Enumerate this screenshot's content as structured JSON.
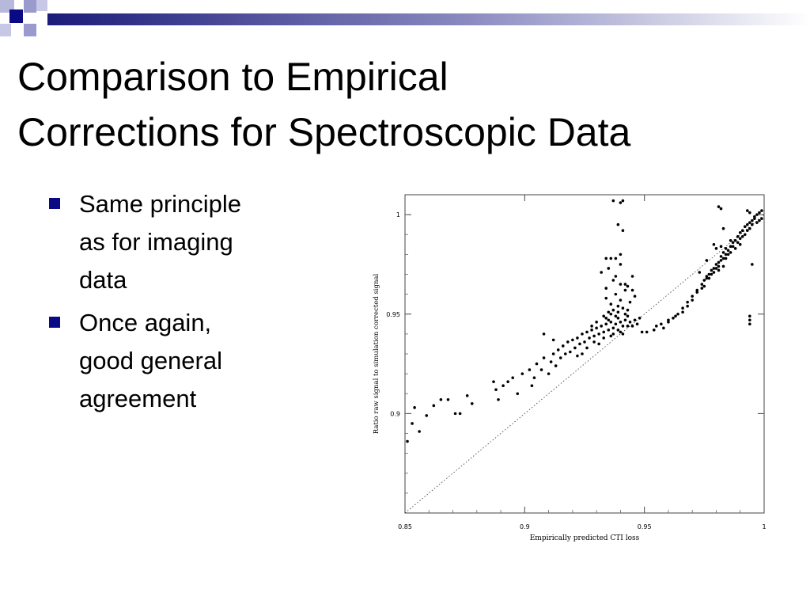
{
  "slide": {
    "title_lines": [
      "Comparison to Empirical",
      "Corrections for Spectroscopic Data"
    ],
    "bullets": [
      [
        "Same principle",
        "as for imaging",
        "data"
      ],
      [
        "Once again,",
        "good general",
        "agreement"
      ]
    ],
    "colors": {
      "bullet": "#0a0a84",
      "header_band": "#1b1b7a",
      "deco_square": "#0a0a84"
    }
  },
  "chart_data": {
    "type": "scatter",
    "xlabel": "Empirically predicted CTI loss",
    "ylabel": "Ratio raw signal to simulation corrected signal",
    "xlim": [
      0.85,
      1.0
    ],
    "ylim": [
      0.85,
      1.01
    ],
    "xticks": [
      "0.85",
      "0.9",
      "0.95",
      "1"
    ],
    "yticks": [
      "0.9",
      "0.95",
      "1"
    ],
    "reference_line": "y = x (dotted)",
    "series": [
      {
        "points": [
          [
            0.851,
            0.886
          ],
          [
            0.853,
            0.895
          ],
          [
            0.854,
            0.903
          ],
          [
            0.856,
            0.891
          ],
          [
            0.859,
            0.899
          ],
          [
            0.862,
            0.904
          ],
          [
            0.865,
            0.907
          ],
          [
            0.868,
            0.907
          ],
          [
            0.871,
            0.9
          ],
          [
            0.873,
            0.9
          ],
          [
            0.876,
            0.909
          ],
          [
            0.878,
            0.905
          ],
          [
            0.887,
            0.916
          ],
          [
            0.888,
            0.912
          ],
          [
            0.889,
            0.907
          ],
          [
            0.891,
            0.914
          ],
          [
            0.893,
            0.916
          ],
          [
            0.895,
            0.918
          ],
          [
            0.897,
            0.91
          ],
          [
            0.899,
            0.92
          ],
          [
            0.902,
            0.922
          ],
          [
            0.903,
            0.914
          ],
          [
            0.904,
            0.918
          ],
          [
            0.905,
            0.925
          ],
          [
            0.907,
            0.922
          ],
          [
            0.908,
            0.928
          ],
          [
            0.91,
            0.92
          ],
          [
            0.911,
            0.926
          ],
          [
            0.912,
            0.93
          ],
          [
            0.913,
            0.924
          ],
          [
            0.914,
            0.932
          ],
          [
            0.915,
            0.928
          ],
          [
            0.916,
            0.934
          ],
          [
            0.917,
            0.93
          ],
          [
            0.918,
            0.936
          ],
          [
            0.919,
            0.931
          ],
          [
            0.92,
            0.937
          ],
          [
            0.921,
            0.933
          ],
          [
            0.922,
            0.938
          ],
          [
            0.923,
            0.935
          ],
          [
            0.924,
            0.94
          ],
          [
            0.925,
            0.936
          ],
          [
            0.926,
            0.941
          ],
          [
            0.927,
            0.938
          ],
          [
            0.928,
            0.942
          ],
          [
            0.929,
            0.939
          ],
          [
            0.93,
            0.943
          ],
          [
            0.931,
            0.94
          ],
          [
            0.932,
            0.944
          ],
          [
            0.933,
            0.941
          ],
          [
            0.934,
            0.945
          ],
          [
            0.935,
            0.942
          ],
          [
            0.936,
            0.946
          ],
          [
            0.937,
            0.943
          ],
          [
            0.938,
            0.945
          ],
          [
            0.939,
            0.942
          ],
          [
            0.94,
            0.946
          ],
          [
            0.941,
            0.944
          ],
          [
            0.942,
            0.947
          ],
          [
            0.943,
            0.944
          ],
          [
            0.944,
            0.946
          ],
          [
            0.945,
            0.944
          ],
          [
            0.946,
            0.947
          ],
          [
            0.947,
            0.945
          ],
          [
            0.948,
            0.948
          ],
          [
            0.933,
            0.938
          ],
          [
            0.935,
            0.947
          ],
          [
            0.937,
            0.94
          ],
          [
            0.939,
            0.948
          ],
          [
            0.941,
            0.94
          ],
          [
            0.943,
            0.949
          ],
          [
            0.936,
            0.939
          ],
          [
            0.938,
            0.949
          ],
          [
            0.94,
            0.941
          ],
          [
            0.942,
            0.95
          ],
          [
            0.934,
            0.948
          ],
          [
            0.93,
            0.946
          ],
          [
            0.928,
            0.944
          ],
          [
            0.926,
            0.933
          ],
          [
            0.924,
            0.93
          ],
          [
            0.922,
            0.929
          ],
          [
            0.929,
            0.936
          ],
          [
            0.931,
            0.935
          ],
          [
            0.933,
            0.949
          ],
          [
            0.935,
            0.951
          ],
          [
            0.937,
            0.952
          ],
          [
            0.939,
            0.951
          ],
          [
            0.941,
            0.953
          ],
          [
            0.943,
            0.952
          ],
          [
            0.934,
            0.958
          ],
          [
            0.936,
            0.955
          ],
          [
            0.938,
            0.96
          ],
          [
            0.94,
            0.957
          ],
          [
            0.942,
            0.962
          ],
          [
            0.944,
            0.956
          ],
          [
            0.946,
            0.959
          ],
          [
            0.934,
            0.963
          ],
          [
            0.937,
            0.967
          ],
          [
            0.94,
            0.965
          ],
          [
            0.943,
            0.964
          ],
          [
            0.945,
            0.969
          ],
          [
            0.932,
            0.971
          ],
          [
            0.935,
            0.973
          ],
          [
            0.938,
            0.969
          ],
          [
            0.94,
            0.975
          ],
          [
            0.942,
            0.965
          ],
          [
            0.936,
            0.95
          ],
          [
            0.939,
            0.954
          ],
          [
            0.94,
            0.98
          ],
          [
            0.938,
            0.978
          ],
          [
            0.936,
            0.978
          ],
          [
            0.934,
            0.978
          ],
          [
            0.939,
            0.995
          ],
          [
            0.941,
            0.992
          ],
          [
            0.937,
            1.007
          ],
          [
            0.94,
            1.006
          ],
          [
            0.941,
            1.007
          ],
          [
            0.945,
            0.962
          ],
          [
            0.908,
            0.94
          ],
          [
            0.912,
            0.937
          ],
          [
            0.955,
            0.944
          ],
          [
            0.958,
            0.943
          ],
          [
            0.96,
            0.946
          ],
          [
            0.962,
            0.948
          ],
          [
            0.964,
            0.95
          ],
          [
            0.966,
            0.953
          ],
          [
            0.968,
            0.956
          ],
          [
            0.97,
            0.959
          ],
          [
            0.972,
            0.962
          ],
          [
            0.974,
            0.965
          ],
          [
            0.975,
            0.967
          ],
          [
            0.976,
            0.969
          ],
          [
            0.977,
            0.97
          ],
          [
            0.978,
            0.972
          ],
          [
            0.979,
            0.973
          ],
          [
            0.98,
            0.975
          ],
          [
            0.981,
            0.976
          ],
          [
            0.982,
            0.977
          ],
          [
            0.983,
            0.978
          ],
          [
            0.984,
            0.98
          ],
          [
            0.985,
            0.982
          ],
          [
            0.986,
            0.984
          ],
          [
            0.987,
            0.986
          ],
          [
            0.988,
            0.987
          ],
          [
            0.989,
            0.989
          ],
          [
            0.99,
            0.991
          ],
          [
            0.991,
            0.992
          ],
          [
            0.992,
            0.994
          ],
          [
            0.993,
            0.995
          ],
          [
            0.994,
            0.996
          ],
          [
            0.995,
            0.997
          ],
          [
            0.996,
            0.998
          ],
          [
            0.997,
            0.996
          ],
          [
            0.998,
            0.997
          ],
          [
            0.999,
            0.998
          ],
          [
            0.997,
            1.0
          ],
          [
            0.998,
            1.001
          ],
          [
            0.999,
            1.002
          ],
          [
            0.996,
            0.999
          ],
          [
            0.995,
            0.995
          ],
          [
            0.994,
            0.993
          ],
          [
            0.993,
            0.992
          ],
          [
            0.992,
            0.99
          ],
          [
            0.991,
            0.989
          ],
          [
            0.99,
            0.988
          ],
          [
            0.989,
            0.986
          ],
          [
            0.987,
            0.984
          ],
          [
            0.985,
            0.98
          ],
          [
            0.984,
            0.978
          ],
          [
            0.983,
            0.981
          ],
          [
            0.982,
            0.979
          ],
          [
            0.981,
            0.974
          ],
          [
            0.98,
            0.973
          ],
          [
            0.978,
            0.97
          ],
          [
            0.976,
            0.968
          ],
          [
            0.974,
            0.963
          ],
          [
            0.972,
            0.961
          ],
          [
            0.97,
            0.957
          ],
          [
            0.968,
            0.954
          ],
          [
            0.966,
            0.951
          ],
          [
            0.963,
            0.949
          ],
          [
            0.96,
            0.947
          ],
          [
            0.957,
            0.945
          ],
          [
            0.954,
            0.942
          ],
          [
            0.951,
            0.941
          ],
          [
            0.949,
            0.941
          ],
          [
            0.975,
            0.964
          ],
          [
            0.977,
            0.968
          ],
          [
            0.979,
            0.971
          ],
          [
            0.981,
            0.972
          ],
          [
            0.983,
            0.974
          ],
          [
            0.986,
            0.981
          ],
          [
            0.988,
            0.983
          ],
          [
            0.99,
            0.985
          ],
          [
            0.98,
            0.983
          ],
          [
            0.982,
            0.984
          ],
          [
            0.984,
            0.983
          ],
          [
            0.986,
            0.987
          ],
          [
            0.979,
            0.985
          ],
          [
            0.983,
            0.993
          ],
          [
            0.982,
            1.003
          ],
          [
            0.981,
            1.004
          ],
          [
            0.993,
            1.002
          ],
          [
            0.994,
            1.001
          ],
          [
            0.995,
            0.975
          ],
          [
            0.994,
            0.949
          ],
          [
            0.994,
            0.947
          ],
          [
            0.994,
            0.945
          ],
          [
            0.973,
            0.971
          ],
          [
            0.976,
            0.977
          ]
        ]
      }
    ]
  }
}
